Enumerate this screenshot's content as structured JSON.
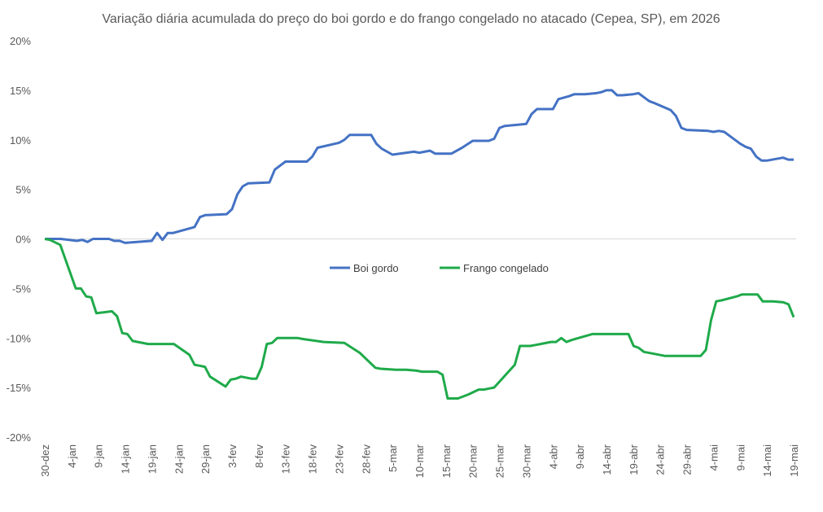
{
  "chart_data": {
    "type": "line",
    "title": "Variação diária acumulada do preço do boi gordo e do frango congelado no atacado (Cepea, SP), em 2026",
    "xlabel": "",
    "ylabel": "",
    "ylim": [
      -0.2,
      0.2
    ],
    "y_ticks": [
      {
        "value": 0.2,
        "label": "20%"
      },
      {
        "value": 0.15,
        "label": "15%"
      },
      {
        "value": 0.1,
        "label": "10%"
      },
      {
        "value": 0.05,
        "label": "5%"
      },
      {
        "value": 0.0,
        "label": "0%"
      },
      {
        "value": -0.05,
        "label": "-5%"
      },
      {
        "value": -0.1,
        "label": "-10%"
      },
      {
        "value": -0.15,
        "label": "-15%"
      },
      {
        "value": -0.2,
        "label": "-20%"
      }
    ],
    "x_tick_labels": [
      {
        "day": 0,
        "label": "30-dez"
      },
      {
        "day": 5,
        "label": "4-jan"
      },
      {
        "day": 10,
        "label": "9-jan"
      },
      {
        "day": 15,
        "label": "14-jan"
      },
      {
        "day": 20,
        "label": "19-jan"
      },
      {
        "day": 25,
        "label": "24-jan"
      },
      {
        "day": 30,
        "label": "29-jan"
      },
      {
        "day": 35,
        "label": "3-fev"
      },
      {
        "day": 40,
        "label": "8-fev"
      },
      {
        "day": 45,
        "label": "13-fev"
      },
      {
        "day": 50,
        "label": "18-fev"
      },
      {
        "day": 55,
        "label": "23-fev"
      },
      {
        "day": 60,
        "label": "28-fev"
      },
      {
        "day": 65,
        "label": "5-mar"
      },
      {
        "day": 70,
        "label": "10-mar"
      },
      {
        "day": 75,
        "label": "15-mar"
      },
      {
        "day": 80,
        "label": "20-mar"
      },
      {
        "day": 85,
        "label": "25-mar"
      },
      {
        "day": 90,
        "label": "30-mar"
      },
      {
        "day": 95,
        "label": "4-abr"
      },
      {
        "day": 100,
        "label": "9-abr"
      },
      {
        "day": 105,
        "label": "14-abr"
      },
      {
        "day": 110,
        "label": "19-abr"
      },
      {
        "day": 115,
        "label": "24-abr"
      },
      {
        "day": 120,
        "label": "29-abr"
      },
      {
        "day": 125,
        "label": "4-mai"
      },
      {
        "day": 130,
        "label": "9-mai"
      },
      {
        "day": 135,
        "label": "14-mai"
      },
      {
        "day": 140,
        "label": "19-mai"
      }
    ],
    "x_range": [
      0,
      141
    ],
    "grid": false,
    "legend_position": "center",
    "series": [
      {
        "name": "Boi gordo",
        "color": "#4472C4",
        "points": [
          [
            0,
            0.0
          ],
          [
            3,
            0.0
          ],
          [
            6,
            -0.002
          ],
          [
            7,
            -0.001
          ],
          [
            8,
            -0.003
          ],
          [
            9,
            0.0
          ],
          [
            11,
            0.0
          ],
          [
            12,
            0.0
          ],
          [
            13,
            -0.002
          ],
          [
            14,
            -0.002
          ],
          [
            15,
            -0.004
          ],
          [
            20,
            -0.002
          ],
          [
            21,
            0.006
          ],
          [
            22,
            -0.001
          ],
          [
            23,
            0.006
          ],
          [
            24,
            0.006
          ],
          [
            28,
            0.012
          ],
          [
            29,
            0.022
          ],
          [
            30,
            0.024
          ],
          [
            34,
            0.025
          ],
          [
            35,
            0.03
          ],
          [
            36,
            0.045
          ],
          [
            37,
            0.053
          ],
          [
            38,
            0.056
          ],
          [
            42,
            0.057
          ],
          [
            43,
            0.07
          ],
          [
            45,
            0.078
          ],
          [
            49,
            0.078
          ],
          [
            50,
            0.083
          ],
          [
            51,
            0.092
          ],
          [
            55,
            0.097
          ],
          [
            56,
            0.1
          ],
          [
            57,
            0.105
          ],
          [
            61,
            0.105
          ],
          [
            62,
            0.096
          ],
          [
            63,
            0.091
          ],
          [
            65,
            0.085
          ],
          [
            69,
            0.088
          ],
          [
            70,
            0.087
          ],
          [
            71,
            0.088
          ],
          [
            72,
            0.089
          ],
          [
            73,
            0.086
          ],
          [
            76,
            0.086
          ],
          [
            78,
            0.092
          ],
          [
            80,
            0.099
          ],
          [
            83,
            0.099
          ],
          [
            84,
            0.101
          ],
          [
            85,
            0.112
          ],
          [
            86,
            0.114
          ],
          [
            90,
            0.116
          ],
          [
            91,
            0.126
          ],
          [
            92,
            0.131
          ],
          [
            95,
            0.131
          ],
          [
            96,
            0.141
          ],
          [
            98,
            0.144
          ],
          [
            99,
            0.146
          ],
          [
            101,
            0.146
          ],
          [
            103,
            0.147
          ],
          [
            104,
            0.148
          ],
          [
            105,
            0.15
          ],
          [
            106,
            0.15
          ],
          [
            107,
            0.145
          ],
          [
            108,
            0.145
          ],
          [
            110,
            0.146
          ],
          [
            111,
            0.147
          ],
          [
            113,
            0.139
          ],
          [
            114,
            0.137
          ],
          [
            117,
            0.13
          ],
          [
            118,
            0.124
          ],
          [
            119,
            0.112
          ],
          [
            120,
            0.11
          ],
          [
            124,
            0.109
          ],
          [
            125,
            0.108
          ],
          [
            126,
            0.109
          ],
          [
            127,
            0.108
          ],
          [
            130,
            0.096
          ],
          [
            131,
            0.093
          ],
          [
            132,
            0.091
          ],
          [
            133,
            0.083
          ],
          [
            134,
            0.079
          ],
          [
            135,
            0.079
          ],
          [
            138,
            0.082
          ],
          [
            139,
            0.08
          ],
          [
            140,
            0.08
          ]
        ]
      },
      {
        "name": "Frango congelado",
        "color": "#1FAA4A",
        "points": [
          [
            0,
            0.0
          ],
          [
            1,
            -0.001
          ],
          [
            3,
            -0.006
          ],
          [
            6,
            -0.05
          ],
          [
            7,
            -0.05
          ],
          [
            8,
            -0.058
          ],
          [
            9,
            -0.059
          ],
          [
            10,
            -0.075
          ],
          [
            13,
            -0.073
          ],
          [
            14,
            -0.078
          ],
          [
            15,
            -0.095
          ],
          [
            16,
            -0.096
          ],
          [
            17,
            -0.103
          ],
          [
            20,
            -0.106
          ],
          [
            25,
            -0.106
          ],
          [
            28,
            -0.117
          ],
          [
            29,
            -0.127
          ],
          [
            30,
            -0.128
          ],
          [
            31,
            -0.129
          ],
          [
            32,
            -0.139
          ],
          [
            35,
            -0.149
          ],
          [
            36,
            -0.142
          ],
          [
            37,
            -0.141
          ],
          [
            38,
            -0.139
          ],
          [
            40,
            -0.141
          ],
          [
            41,
            -0.141
          ],
          [
            42,
            -0.129
          ],
          [
            43,
            -0.106
          ],
          [
            44,
            -0.105
          ],
          [
            45,
            -0.1
          ],
          [
            49,
            -0.1
          ],
          [
            50,
            -0.101
          ],
          [
            54,
            -0.104
          ],
          [
            58,
            -0.105
          ],
          [
            61,
            -0.115
          ],
          [
            64,
            -0.13
          ],
          [
            65,
            -0.131
          ],
          [
            68,
            -0.132
          ],
          [
            70,
            -0.132
          ],
          [
            72,
            -0.133
          ],
          [
            73,
            -0.134
          ],
          [
            76,
            -0.134
          ],
          [
            77,
            -0.137
          ],
          [
            78,
            -0.161
          ],
          [
            80,
            -0.161
          ],
          [
            82,
            -0.157
          ],
          [
            84,
            -0.152
          ],
          [
            85,
            -0.152
          ],
          [
            86,
            -0.151
          ],
          [
            87,
            -0.15
          ],
          [
            91,
            -0.127
          ],
          [
            92,
            -0.108
          ],
          [
            94,
            -0.108
          ],
          [
            95,
            -0.107
          ],
          [
            96,
            -0.106
          ],
          [
            98,
            -0.104
          ],
          [
            99,
            -0.104
          ],
          [
            100,
            -0.1
          ],
          [
            101,
            -0.104
          ],
          [
            102,
            -0.102
          ],
          [
            106,
            -0.096
          ],
          [
            113,
            -0.096
          ],
          [
            114,
            -0.108
          ],
          [
            115,
            -0.11
          ],
          [
            116,
            -0.114
          ],
          [
            118,
            -0.116
          ],
          [
            120,
            -0.118
          ],
          [
            127,
            -0.118
          ],
          [
            128,
            -0.112
          ],
          [
            129,
            -0.082
          ],
          [
            130,
            -0.063
          ],
          [
            131,
            -0.062
          ],
          [
            134,
            -0.058
          ],
          [
            135,
            -0.056
          ],
          [
            138,
            -0.056
          ],
          [
            139,
            -0.063
          ],
          [
            141,
            -0.063
          ],
          [
            143,
            -0.064
          ],
          [
            144,
            -0.066
          ],
          [
            145,
            -0.079
          ]
        ]
      }
    ]
  }
}
